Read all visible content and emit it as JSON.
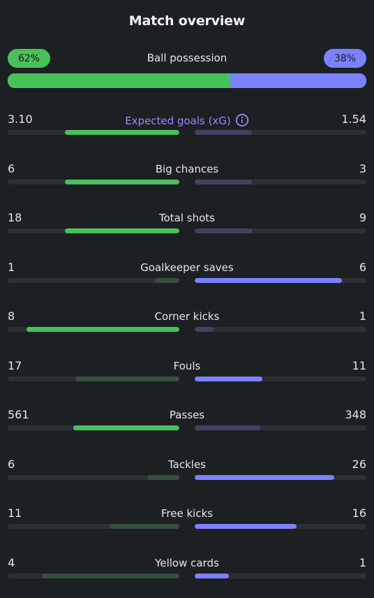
{
  "title": "Match overview",
  "possession": {
    "label": "Ball possession",
    "home": "62%",
    "away": "38%",
    "home_fraction": 0.62
  },
  "colors": {
    "home_strong": "#49c15a",
    "home_weak": "#35503d",
    "away_strong": "#7b82ff",
    "away_weak": "#3e4361",
    "track": "#2c3034"
  },
  "stats": [
    {
      "label": "Expected goals (xG)",
      "home": "3.10",
      "away": "1.54",
      "home_fraction": 0.668,
      "away_fraction": 0.332,
      "winner": "home",
      "accent": true,
      "icon": "info-icon"
    },
    {
      "label": "Big chances",
      "home": "6",
      "away": "3",
      "home_fraction": 0.667,
      "away_fraction": 0.333,
      "winner": "home"
    },
    {
      "label": "Total shots",
      "home": "18",
      "away": "9",
      "home_fraction": 0.667,
      "away_fraction": 0.333,
      "winner": "home"
    },
    {
      "label": "Goalkeeper saves",
      "home": "1",
      "away": "6",
      "home_fraction": 0.143,
      "away_fraction": 0.857,
      "winner": "away"
    },
    {
      "label": "Corner kicks",
      "home": "8",
      "away": "1",
      "home_fraction": 0.889,
      "away_fraction": 0.111,
      "winner": "home"
    },
    {
      "label": "Fouls",
      "home": "17",
      "away": "11",
      "home_fraction": 0.607,
      "away_fraction": 0.393,
      "winner": "away"
    },
    {
      "label": "Passes",
      "home": "561",
      "away": "348",
      "home_fraction": 0.617,
      "away_fraction": 0.383,
      "winner": "home"
    },
    {
      "label": "Tackles",
      "home": "6",
      "away": "26",
      "home_fraction": 0.188,
      "away_fraction": 0.812,
      "winner": "away"
    },
    {
      "label": "Free kicks",
      "home": "11",
      "away": "16",
      "home_fraction": 0.407,
      "away_fraction": 0.593,
      "winner": "away"
    },
    {
      "label": "Yellow cards",
      "home": "4",
      "away": "1",
      "home_fraction": 0.8,
      "away_fraction": 0.2,
      "winner": "away"
    }
  ]
}
